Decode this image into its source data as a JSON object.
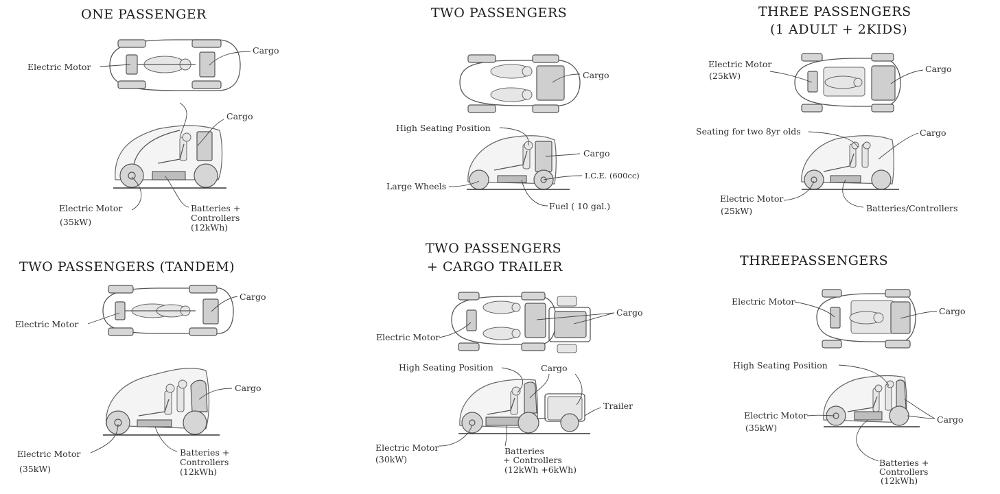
{
  "panels": {
    "p1": {
      "title": "ONE PASSENGER",
      "top": {
        "motor": "Electric Motor",
        "cargo": "Cargo"
      },
      "side": {
        "cargo": "Cargo",
        "motor": "Electric Motor",
        "motor_power": "(35kW)",
        "batteries_1": "Batteries +",
        "batteries_2": "Controllers",
        "batteries_3": "(12kWh)"
      }
    },
    "p2": {
      "title": "TWO PASSENGERS",
      "top": {
        "cargo": "Cargo"
      },
      "side": {
        "seating": "High Seating Position",
        "cargo": "Cargo",
        "ice": "I.C.E.  (600cc)",
        "wheels": "Large Wheels",
        "fuel": "Fuel ( 10 gal.)"
      }
    },
    "p3": {
      "title_1": "THREE PASSENGERS",
      "title_2": "(1 ADULT + 2KIDS)",
      "top": {
        "motor": "Electric Motor",
        "motor_power": "(25kW)",
        "cargo": "Cargo"
      },
      "side": {
        "seating": "Seating for two 8yr olds",
        "cargo": "Cargo",
        "motor": "Electric Motor",
        "motor_power": "(25kW)",
        "batteries": "Batteries/Controllers"
      }
    },
    "p4": {
      "title": "TWO PASSENGERS (TANDEM)",
      "top": {
        "motor": "Electric Motor",
        "cargo": "Cargo"
      },
      "side": {
        "cargo": "Cargo",
        "motor": "Electric Motor",
        "motor_power": "(35kW)",
        "batteries_1": "Batteries +",
        "batteries_2": "Controllers",
        "batteries_3": "(12kWh)"
      }
    },
    "p5": {
      "title_1": "TWO PASSENGERS",
      "title_2": "+ CARGO TRAILER",
      "top": {
        "motor": "Electric Motor",
        "cargo": "Cargo"
      },
      "side": {
        "seating": "High Seating Position",
        "cargo": "Cargo",
        "trailer": "Trailer",
        "motor": "Electric Motor",
        "motor_power": "(30kW)",
        "batteries_1": "Batteries",
        "batteries_2": "+ Controllers",
        "batteries_3": "(12kWh +6kWh)"
      }
    },
    "p6": {
      "title": "THREEPASSENGERS",
      "top": {
        "motor": "Electric Motor",
        "cargo": "Cargo"
      },
      "side": {
        "seating": "High Seating Position",
        "motor": "Electric Motor",
        "motor_power": "(35kW)",
        "cargo": "Cargo",
        "batteries_1": "Batteries +",
        "batteries_2": "Controllers",
        "batteries_3": "(12kWh)"
      }
    }
  },
  "colors": {
    "ink": "#2a2a2a",
    "fill_gray": "#cfcfcf",
    "background": "#ffffff"
  }
}
